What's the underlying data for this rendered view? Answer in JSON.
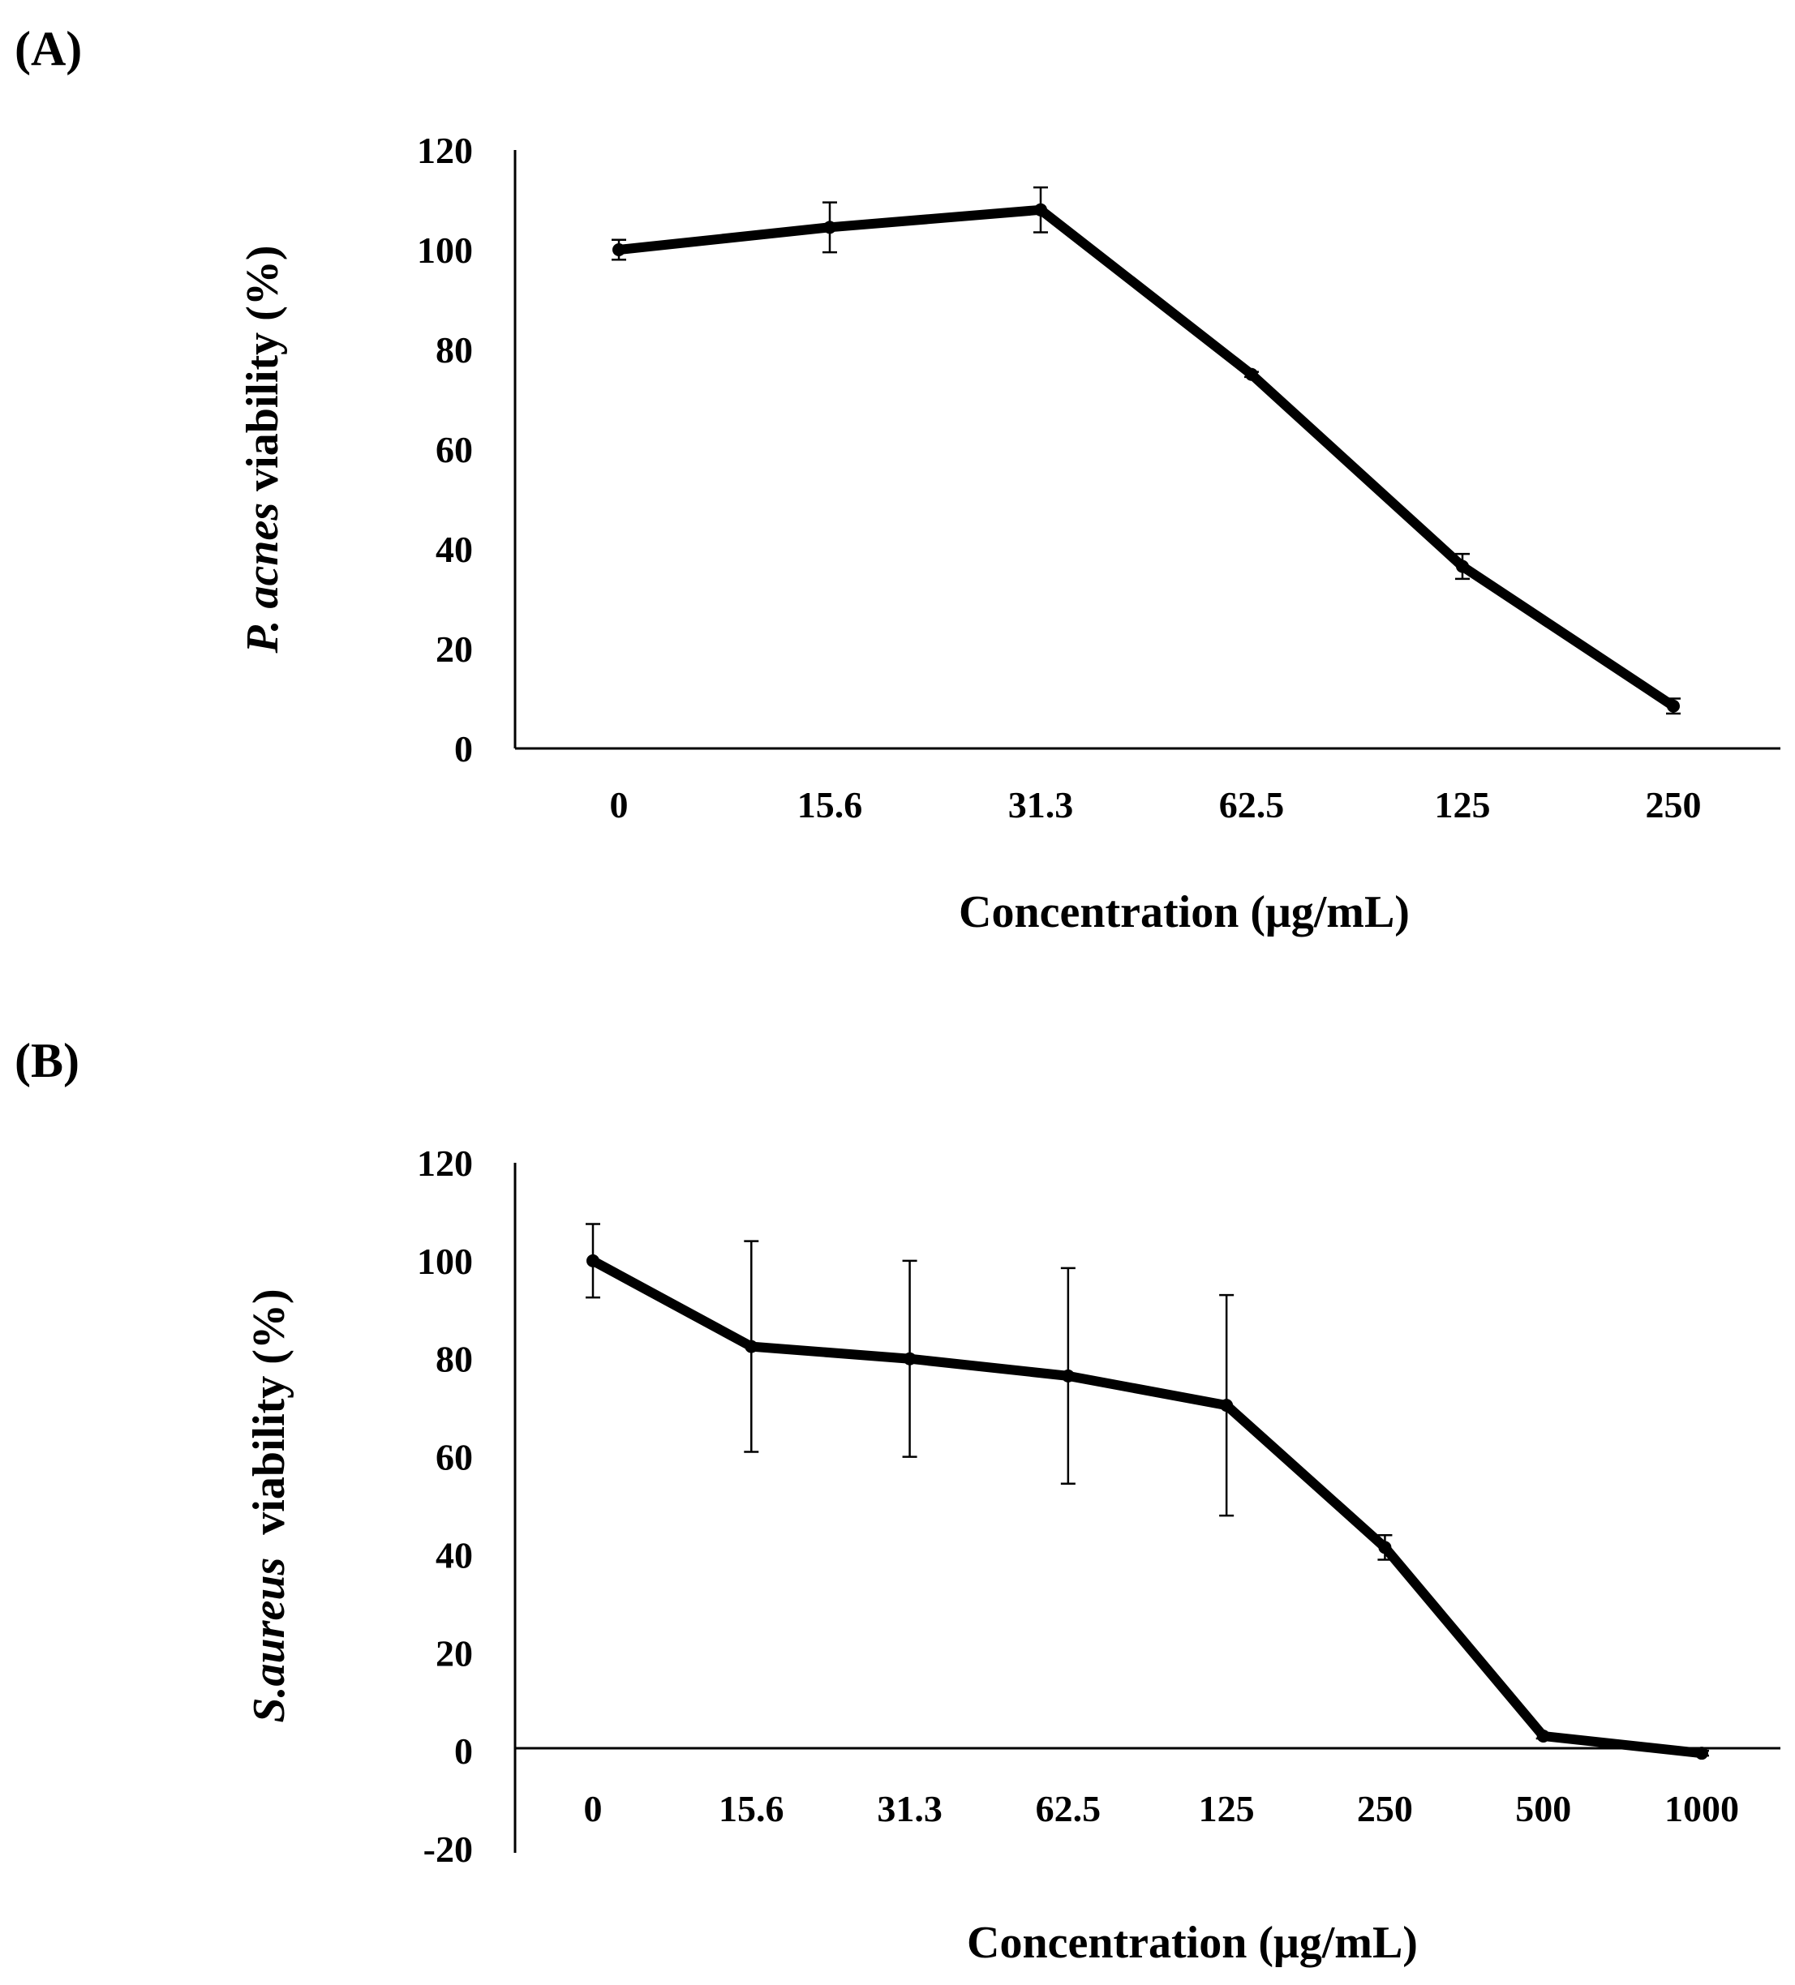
{
  "panels": {
    "a_label": "(A)",
    "b_label": "(B)"
  },
  "chart_data": [
    {
      "type": "line",
      "panel": "(A)",
      "categories": [
        "0",
        "15.6",
        "31.3",
        "62.5",
        "125",
        "250"
      ],
      "series": [
        {
          "values": [
            100,
            104.5,
            108,
            75,
            36.5,
            8.5
          ],
          "errors": [
            2,
            5,
            4.5,
            0.5,
            2.5,
            1.5
          ]
        }
      ],
      "ylabel": {
        "italic": "P. acnes",
        "rest": " viability (%)"
      },
      "xlabel": "Concentration (μg/mL)",
      "ylim": [
        0,
        120
      ],
      "yticks": [
        "0",
        "20",
        "40",
        "60",
        "80",
        "100",
        "120"
      ],
      "grid": false,
      "legend": "none"
    },
    {
      "type": "line",
      "panel": "(B)",
      "categories": [
        "0",
        "15.6",
        "31.3",
        "62.5",
        "125",
        "250",
        "500",
        "1000"
      ],
      "series": [
        {
          "values": [
            100,
            82.5,
            80,
            76.5,
            70.5,
            41.5,
            3,
            -0.5
          ],
          "errors": [
            7.5,
            21.5,
            20,
            22,
            22.5,
            2.5,
            0.5,
            0.5
          ]
        }
      ],
      "ylabel": {
        "italic": "S.aureus",
        "rest": "  viability (%)"
      },
      "xlabel": "Concentration (μg/mL)",
      "ylim": [
        -20,
        120
      ],
      "yticks": [
        "-20",
        "0",
        "20",
        "40",
        "60",
        "80",
        "100",
        "120"
      ],
      "grid": false,
      "legend": "none"
    }
  ]
}
